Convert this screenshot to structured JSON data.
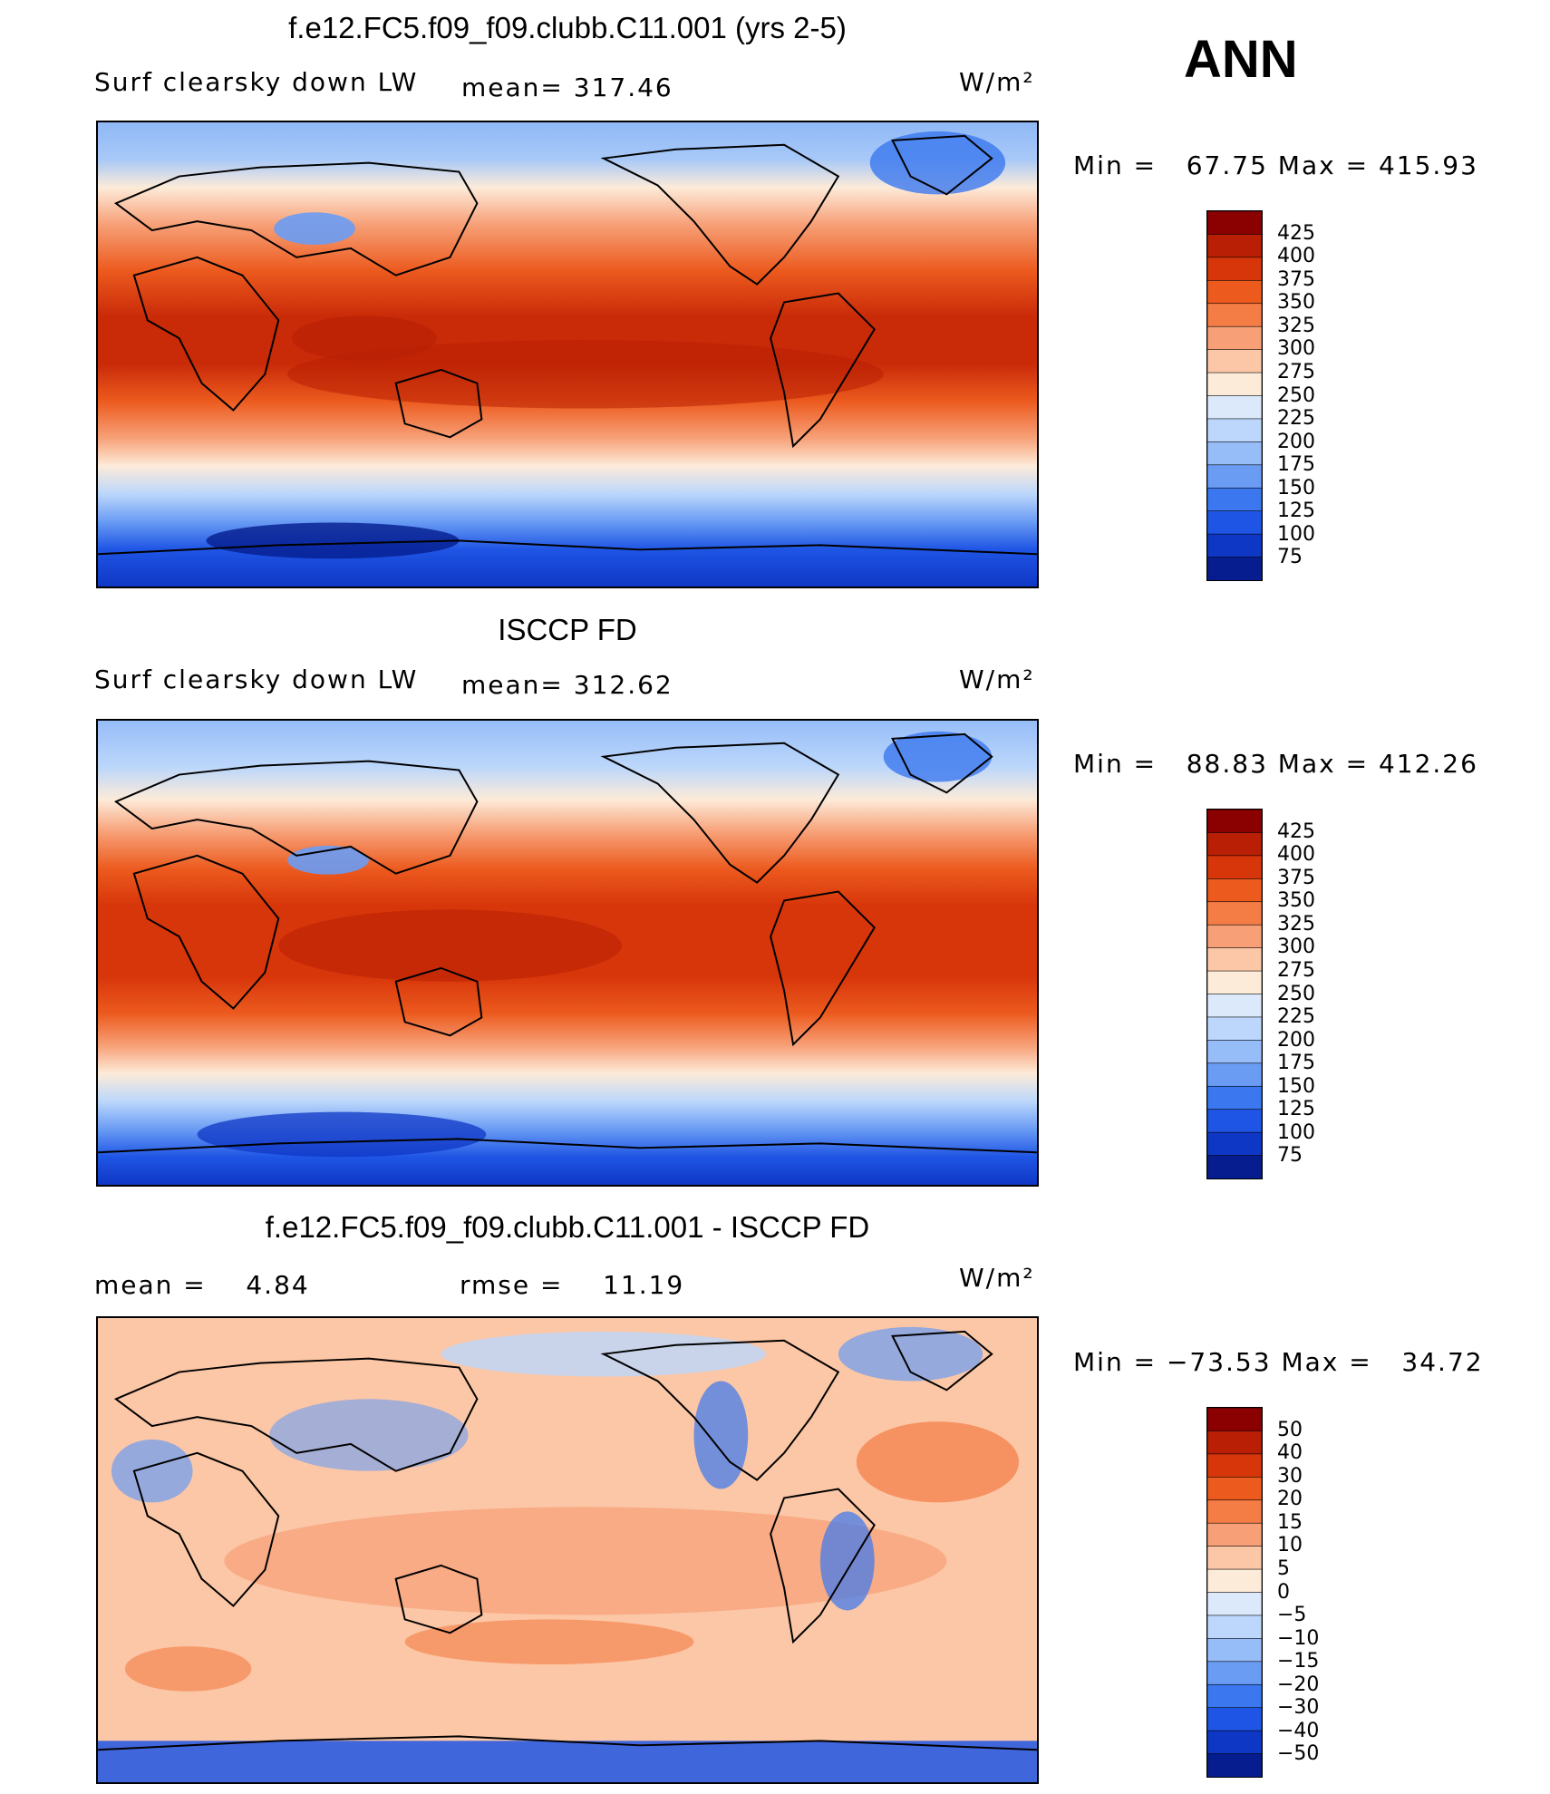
{
  "season": "ANN",
  "chart_data": [
    {
      "type": "heatmap",
      "title": "f.e12.FC5.f09_f09.clubb.C11.001 (yrs 2-5)",
      "left_label": "Surf clearsky down LW",
      "center_label": "mean= 317.46",
      "units": "W/m²",
      "min_max": "Min =   67.75 Max = 415.93",
      "mean": 317.46,
      "min": 67.75,
      "max": 415.93,
      "colorbar_levels": [
        "425",
        "400",
        "375",
        "350",
        "325",
        "300",
        "275",
        "250",
        "225",
        "200",
        "175",
        "150",
        "125",
        "100",
        "75"
      ],
      "colorbar_colors": [
        "#8b0000",
        "#b81f04",
        "#d7350a",
        "#ec5a1e",
        "#f47c45",
        "#f7a077",
        "#fcc7a6",
        "#fdebd9",
        "#dbe9fb",
        "#bcd7fb",
        "#96bdf8",
        "#6a9cf4",
        "#3b78ef",
        "#1f55e5",
        "#0f37c5",
        "#051d8e"
      ]
    },
    {
      "type": "heatmap",
      "title": "ISCCP FD",
      "left_label": "Surf clearsky down LW",
      "center_label": "mean= 312.62",
      "units": "W/m²",
      "min_max": "Min =   88.83 Max = 412.26",
      "mean": 312.62,
      "min": 88.83,
      "max": 412.26,
      "colorbar_levels": [
        "425",
        "400",
        "375",
        "350",
        "325",
        "300",
        "275",
        "250",
        "225",
        "200",
        "175",
        "150",
        "125",
        "100",
        "75"
      ],
      "colorbar_colors": [
        "#8b0000",
        "#b81f04",
        "#d7350a",
        "#ec5a1e",
        "#f47c45",
        "#f7a077",
        "#fcc7a6",
        "#fdebd9",
        "#dbe9fb",
        "#bcd7fb",
        "#96bdf8",
        "#6a9cf4",
        "#3b78ef",
        "#1f55e5",
        "#0f37c5",
        "#051d8e"
      ]
    },
    {
      "type": "heatmap",
      "title": "f.e12.FC5.f09_f09.clubb.C11.001 - ISCCP FD",
      "left_label": "mean =    4.84",
      "center_label": "rmse =    11.19",
      "units": "W/m²",
      "min_max": "Min = −73.53 Max =   34.72",
      "mean": 4.84,
      "rmse": 11.19,
      "min": -73.53,
      "max": 34.72,
      "colorbar_levels": [
        "50",
        "40",
        "30",
        "20",
        "15",
        "10",
        "5",
        "0",
        "−5",
        "−10",
        "−15",
        "−20",
        "−30",
        "−40",
        "−50"
      ],
      "colorbar_colors": [
        "#8b0000",
        "#b81f04",
        "#d7350a",
        "#ec5a1e",
        "#f47c45",
        "#f7a077",
        "#fcc7a6",
        "#fdebd9",
        "#dbe9fb",
        "#bcd7fb",
        "#96bdf8",
        "#6a9cf4",
        "#3b78ef",
        "#1f55e5",
        "#0f37c5",
        "#051d8e"
      ]
    }
  ]
}
